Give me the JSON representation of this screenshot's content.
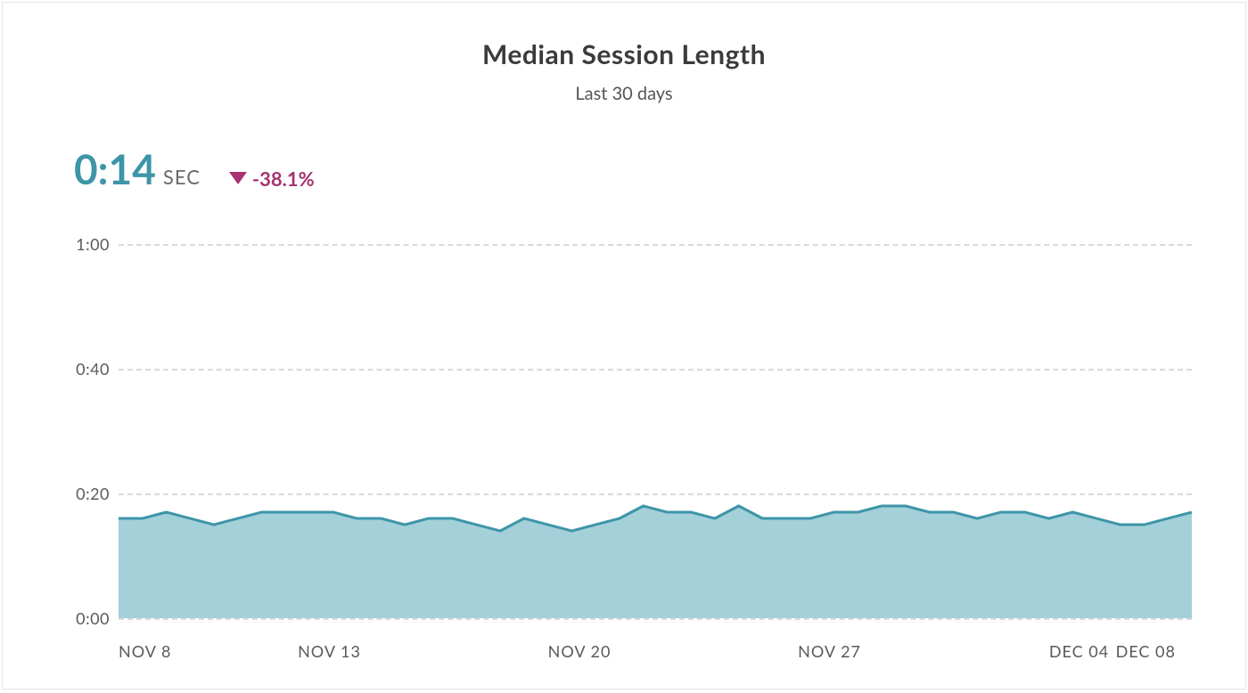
{
  "card": {
    "title": "Median Session Length",
    "subtitle": "Last 30 days",
    "title_fontsize": 30,
    "title_color": "#3b3b3b",
    "subtitle_fontsize": 20,
    "subtitle_color": "#555555",
    "border_color": "#e5e5e5",
    "background_color": "#ffffff"
  },
  "metric": {
    "value": "0:14",
    "value_fontsize": 46,
    "value_color": "#3d95a8",
    "unit": "SEC",
    "unit_fontsize": 22,
    "unit_color": "#6a6a6a",
    "trend_direction": "down",
    "trend_text": "-38.1%",
    "trend_color": "#a6336f",
    "trend_fontsize": 22
  },
  "chart": {
    "type": "area",
    "y": {
      "min_sec": 0,
      "max_sec": 60,
      "ticks_sec": [
        0,
        20,
        40,
        60
      ],
      "tick_labels": [
        "0:00",
        "0:20",
        "0:40",
        "1:00"
      ],
      "label_color": "#5a5a5a",
      "label_fontsize": 18,
      "grid_color": "#d9d9d9"
    },
    "x": {
      "ticks": [
        {
          "label": "NOV 8",
          "pos": 0.0
        },
        {
          "label": "NOV 13",
          "pos": 0.167
        },
        {
          "label": "NOV 20",
          "pos": 0.4
        },
        {
          "label": "NOV 27",
          "pos": 0.633
        },
        {
          "label": "DEC 04",
          "pos": 0.867
        },
        {
          "label": "DEC 08",
          "pos": 0.985
        }
      ],
      "label_color": "#5a5a5a",
      "label_fontsize": 18
    },
    "series": {
      "line_color": "#3d95a8",
      "line_width": 3,
      "fill_color": "#9fcdd7",
      "fill_opacity": 0.95,
      "values_sec": [
        16,
        16,
        17,
        16,
        15,
        16,
        17,
        17,
        17,
        17,
        16,
        16,
        15,
        16,
        16,
        15,
        14,
        16,
        15,
        14,
        15,
        16,
        18,
        17,
        17,
        16,
        18,
        16,
        16,
        16,
        17,
        17,
        18,
        18,
        17,
        17,
        16,
        17,
        17,
        16,
        17,
        16,
        15,
        15,
        16,
        17
      ]
    }
  }
}
